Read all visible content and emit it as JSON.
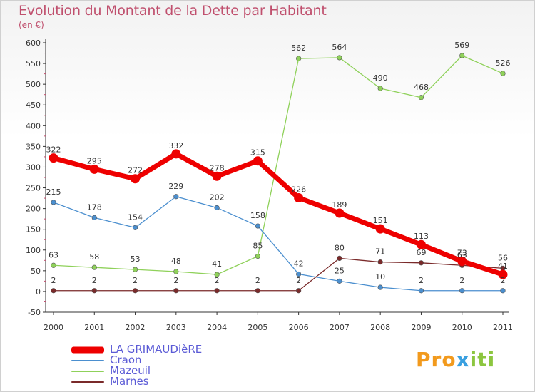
{
  "header": {
    "title": "Evolution du Montant de la Dette par Habitant",
    "subtitle": "(en €)"
  },
  "logo": {
    "text": "Proxiti",
    "letter_colors": [
      "#f29a1d",
      "#f29a1d",
      "#f29a1d",
      "#3aa0e0",
      "#8cc63f",
      "#8cc63f",
      "#8cc63f"
    ]
  },
  "chart_data": {
    "type": "line",
    "title": "Evolution du Montant de la Dette par Habitant",
    "ylabel": "(en €)",
    "xlabel": "",
    "ylim": [
      -50,
      600
    ],
    "yticks": [
      -50,
      0,
      50,
      100,
      150,
      200,
      250,
      300,
      350,
      400,
      450,
      500,
      550,
      600
    ],
    "grid": false,
    "categories": [
      "2000",
      "2001",
      "2002",
      "2003",
      "2004",
      "2005",
      "2006",
      "2007",
      "2008",
      "2009",
      "2010",
      "2011"
    ],
    "series": [
      {
        "name": "LA GRIMAUDièRE",
        "color": "#ee0000",
        "values": [
          322,
          295,
          272,
          332,
          278,
          315,
          226,
          189,
          151,
          113,
          73,
          41
        ]
      },
      {
        "name": "Craon",
        "color": "#4b8fcf",
        "values": [
          215,
          178,
          154,
          229,
          202,
          158,
          42,
          25,
          10,
          2,
          2,
          2
        ]
      },
      {
        "name": "Mazeuil",
        "color": "#8fd15a",
        "values": [
          63,
          58,
          53,
          48,
          41,
          85,
          562,
          564,
          490,
          468,
          569,
          526
        ]
      },
      {
        "name": "Marnes",
        "color": "#7a2a2a",
        "values": [
          2,
          2,
          2,
          2,
          2,
          2,
          2,
          80,
          71,
          69,
          63,
          56
        ]
      }
    ]
  }
}
